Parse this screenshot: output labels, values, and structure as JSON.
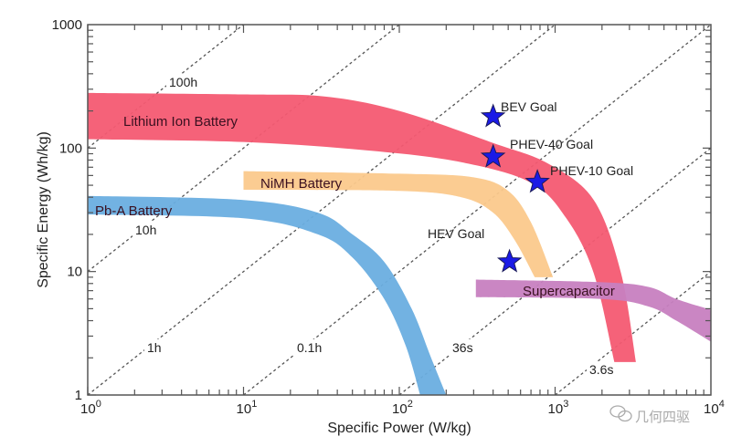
{
  "chart_data": {
    "type": "area",
    "title": "",
    "xlabel": "Specific Power (W/kg)",
    "ylabel": "Specific Energy (Wh/kg)",
    "xscale": "log",
    "yscale": "log",
    "xlim": [
      1,
      10000
    ],
    "ylim": [
      1,
      1000
    ],
    "x_tick_labels": [
      {
        "value": 1,
        "base": "10",
        "exp": "0"
      },
      {
        "value": 10,
        "base": "10",
        "exp": "1"
      },
      {
        "value": 100,
        "base": "10",
        "exp": "2"
      },
      {
        "value": 1000,
        "base": "10",
        "exp": "3"
      },
      {
        "value": 10000,
        "base": "10",
        "exp": "4"
      }
    ],
    "y_tick_labels": [
      {
        "value": 1,
        "label": "1"
      },
      {
        "value": 10,
        "label": "10"
      },
      {
        "value": 100,
        "label": "100"
      },
      {
        "value": 1000,
        "label": "1000"
      }
    ],
    "grid": false,
    "bands": [
      {
        "name": "Lithium Ion Battery",
        "color": "#f45a72",
        "upper": [
          [
            1,
            280
          ],
          [
            10,
            272
          ],
          [
            33,
            262
          ],
          [
            100,
            200
          ],
          [
            400,
            110
          ],
          [
            900,
            75
          ],
          [
            1770,
            38
          ],
          [
            2650,
            9.7
          ],
          [
            3300,
            1.85
          ]
        ],
        "lower": [
          [
            1,
            118
          ],
          [
            10,
            112
          ],
          [
            61,
            96
          ],
          [
            235,
            78
          ],
          [
            690,
            53
          ],
          [
            1180,
            27
          ],
          [
            1770,
            9.7
          ],
          [
            2400,
            1.85
          ]
        ]
      },
      {
        "name": "NiMH Battery",
        "color": "#fbc98c",
        "upper": [
          [
            10,
            65
          ],
          [
            100,
            62
          ],
          [
            300,
            58
          ],
          [
            500,
            45
          ],
          [
            700,
            25
          ],
          [
            970,
            9
          ]
        ],
        "lower": [
          [
            10,
            46
          ],
          [
            100,
            45
          ],
          [
            250,
            40
          ],
          [
            400,
            30
          ],
          [
            550,
            18
          ],
          [
            740,
            9
          ]
        ]
      },
      {
        "name": "Pb-A Battery",
        "color": "#6aaee0",
        "upper": [
          [
            1,
            41
          ],
          [
            10,
            38
          ],
          [
            30,
            30
          ],
          [
            50,
            20
          ],
          [
            80,
            12
          ],
          [
            120,
            5
          ],
          [
            160,
            2
          ],
          [
            200,
            1
          ]
        ],
        "lower": [
          [
            1,
            29
          ],
          [
            10,
            27
          ],
          [
            30,
            20
          ],
          [
            50,
            13
          ],
          [
            80,
            6
          ],
          [
            110,
            2.5
          ],
          [
            136,
            1
          ]
        ]
      },
      {
        "name": "Supercapacitor",
        "color": "#c77fc0",
        "upper": [
          [
            310,
            8.6
          ],
          [
            2000,
            8.2
          ],
          [
            4000,
            7.5
          ],
          [
            6000,
            6
          ],
          [
            10000,
            4.9
          ]
        ],
        "lower": [
          [
            310,
            6.2
          ],
          [
            2000,
            6
          ],
          [
            4000,
            5.2
          ],
          [
            6000,
            4
          ],
          [
            10000,
            2.7
          ]
        ]
      }
    ],
    "goals": [
      {
        "label": "BEV Goal",
        "power": 400,
        "energy": 180
      },
      {
        "label": "PHEV-40 Goal",
        "power": 400,
        "energy": 85
      },
      {
        "label": "PHEV-10 Goal",
        "power": 770,
        "energy": 53
      },
      {
        "label": "HEV Goal",
        "power": 510,
        "energy": 12
      }
    ],
    "goal_color": "#1a1ae6",
    "time_lines": [
      {
        "label": "100h",
        "hours": 100
      },
      {
        "label": "10h",
        "hours": 10
      },
      {
        "label": "1h",
        "hours": 1
      },
      {
        "label": "0.1h",
        "hours": 0.1
      },
      {
        "label": "36s",
        "hours": 0.01
      },
      {
        "label": "3.6s",
        "hours": 0.001
      }
    ]
  },
  "watermark": {
    "text": "几何四驱",
    "icon": "wechat-icon"
  }
}
